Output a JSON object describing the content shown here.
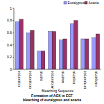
{
  "chart_data": {
    "type": "bar",
    "title": "Formation of AOX in ECF bleaching of eucalyptus and acacia",
    "x_label": "Bleaching Sequence",
    "categories": [
      "D0(EOP)D1",
      "OD0(EOP)D1",
      "D(EP)D",
      "AD0(EOP)D1",
      "AD(EP)D",
      "D/Q(EP)D",
      "DHT(EOP)D1",
      "OD/Q(EP)D"
    ],
    "series": [
      {
        "name": "Eucalyptus",
        "color": "#9999ff",
        "values": [
          0.78,
          0.6,
          0.3,
          0.62,
          0.48,
          0.75,
          0.5,
          0.52
        ]
      },
      {
        "name": "Acacia",
        "color": "#993366",
        "values": [
          0.82,
          0.64,
          0.3,
          0.62,
          0.5,
          0.8,
          0.5,
          0.58
        ]
      }
    ],
    "ylim": [
      0,
      1
    ],
    "yticks": [
      0,
      0.2,
      0.4,
      0.6,
      0.8,
      1
    ],
    "grid": false,
    "legend": "top-right"
  }
}
